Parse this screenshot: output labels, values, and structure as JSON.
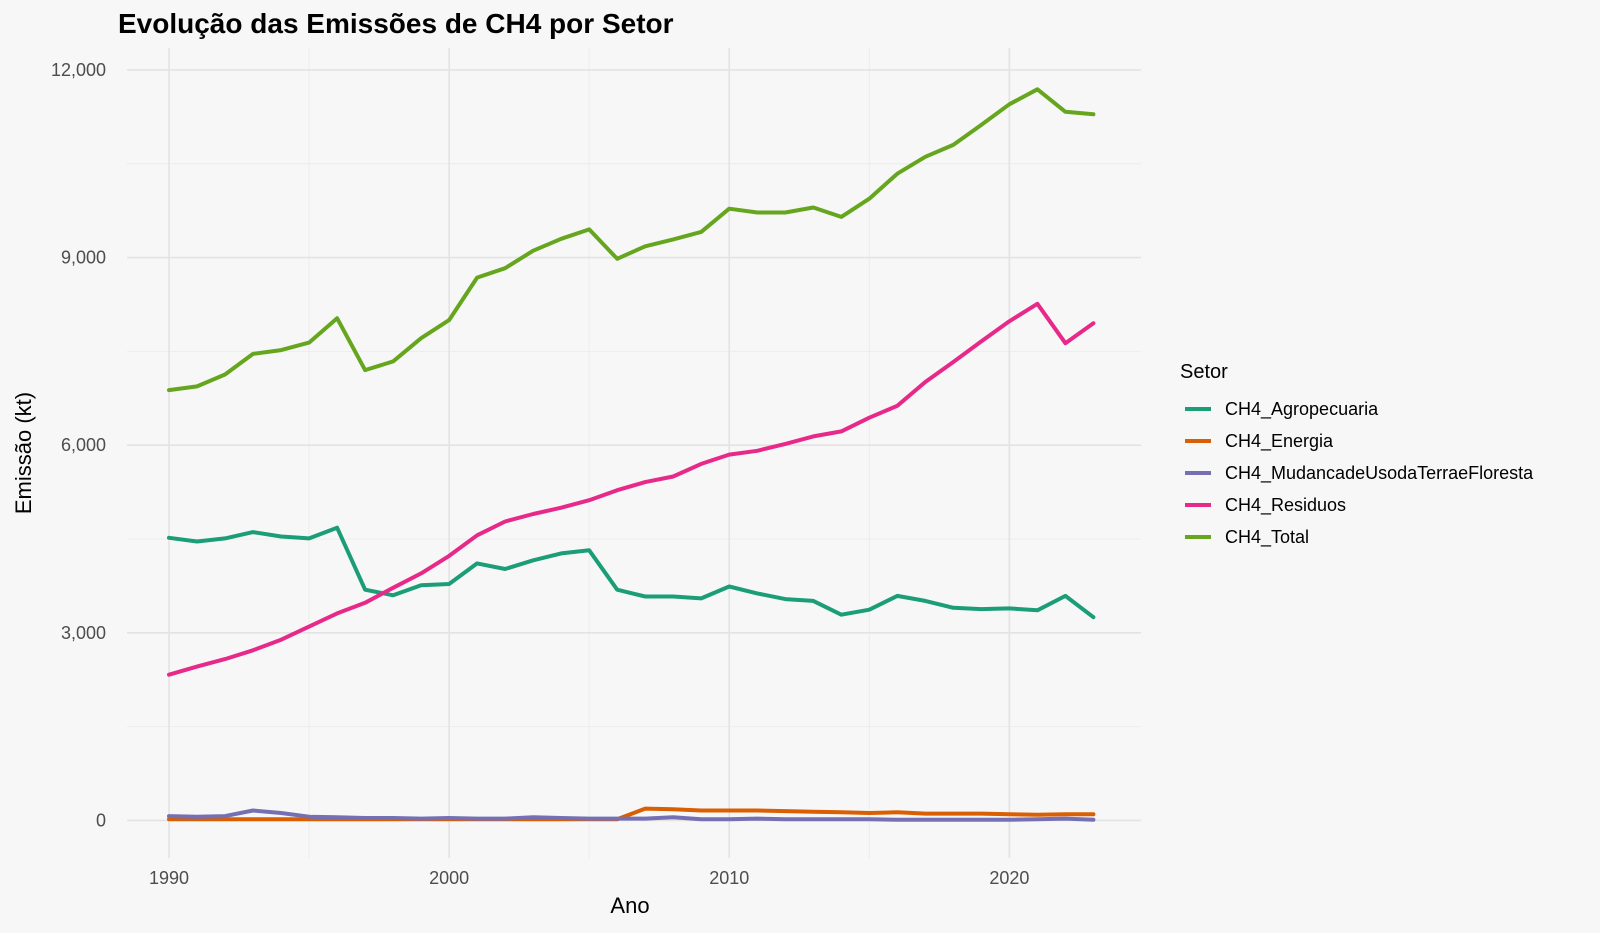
{
  "chart_data": {
    "type": "line",
    "title": "Evolução das Emissões de CH4 por Setor",
    "xlabel": "Ano",
    "ylabel": "Emissão (kt)",
    "xlim": [
      1988.5,
      2024.7
    ],
    "ylim": [
      -600,
      12350
    ],
    "x_ticks": [
      1990,
      2000,
      2010,
      2020
    ],
    "x_tick_labels": [
      "1990",
      "2000",
      "2010",
      "2020"
    ],
    "y_ticks": [
      0,
      3000,
      6000,
      9000,
      12000
    ],
    "y_tick_labels": [
      "0",
      "3,000",
      "6,000",
      "9,000",
      "12,000"
    ],
    "grid": true,
    "legend_title": "Setor",
    "legend_position": "right",
    "x": [
      1990,
      1991,
      1992,
      1993,
      1994,
      1995,
      1996,
      1997,
      1998,
      1999,
      2000,
      2001,
      2002,
      2003,
      2004,
      2005,
      2006,
      2007,
      2008,
      2009,
      2010,
      2011,
      2012,
      2013,
      2014,
      2015,
      2016,
      2017,
      2018,
      2019,
      2020,
      2021,
      2022,
      2023
    ],
    "series": [
      {
        "name": "CH4_Agropecuaria",
        "color": "#1b9e77",
        "values": [
          4520,
          4460,
          4510,
          4610,
          4540,
          4510,
          4680,
          3690,
          3600,
          3760,
          3780,
          4110,
          4020,
          4160,
          4270,
          4320,
          3690,
          3580,
          3580,
          3550,
          3740,
          3630,
          3540,
          3510,
          3290,
          3370,
          3590,
          3510,
          3400,
          3380,
          3390,
          3360,
          3590,
          3250
        ]
      },
      {
        "name": "CH4_Energia",
        "color": "#d95f02",
        "values": [
          20,
          20,
          20,
          20,
          20,
          20,
          20,
          20,
          20,
          20,
          20,
          20,
          20,
          20,
          20,
          20,
          20,
          190,
          180,
          160,
          160,
          160,
          150,
          140,
          130,
          120,
          130,
          110,
          110,
          110,
          100,
          90,
          100,
          100
        ]
      },
      {
        "name": "CH4_MudancadeUsodaTerraeFloresta",
        "color": "#7570b3",
        "values": [
          70,
          60,
          70,
          160,
          120,
          60,
          50,
          40,
          40,
          30,
          40,
          30,
          30,
          50,
          40,
          30,
          30,
          30,
          50,
          20,
          20,
          30,
          20,
          20,
          20,
          20,
          10,
          10,
          10,
          10,
          10,
          20,
          30,
          10
        ]
      },
      {
        "name": "CH4_Residuos",
        "color": "#e7298a",
        "values": [
          2330,
          2460,
          2580,
          2720,
          2890,
          3100,
          3310,
          3480,
          3720,
          3950,
          4230,
          4560,
          4780,
          4900,
          5000,
          5120,
          5280,
          5410,
          5500,
          5700,
          5850,
          5910,
          6020,
          6140,
          6220,
          6440,
          6630,
          7010,
          7330,
          7660,
          7980,
          8260,
          7630,
          7950
        ]
      },
      {
        "name": "CH4_Total",
        "color": "#66a61e",
        "values": [
          6880,
          6940,
          7130,
          7460,
          7520,
          7640,
          8030,
          7200,
          7340,
          7710,
          8000,
          8680,
          8830,
          9110,
          9300,
          9450,
          8980,
          9180,
          9290,
          9410,
          9780,
          9720,
          9720,
          9800,
          9650,
          9940,
          10340,
          10610,
          10800,
          11120,
          11450,
          11690,
          11330,
          11290
        ]
      }
    ]
  }
}
